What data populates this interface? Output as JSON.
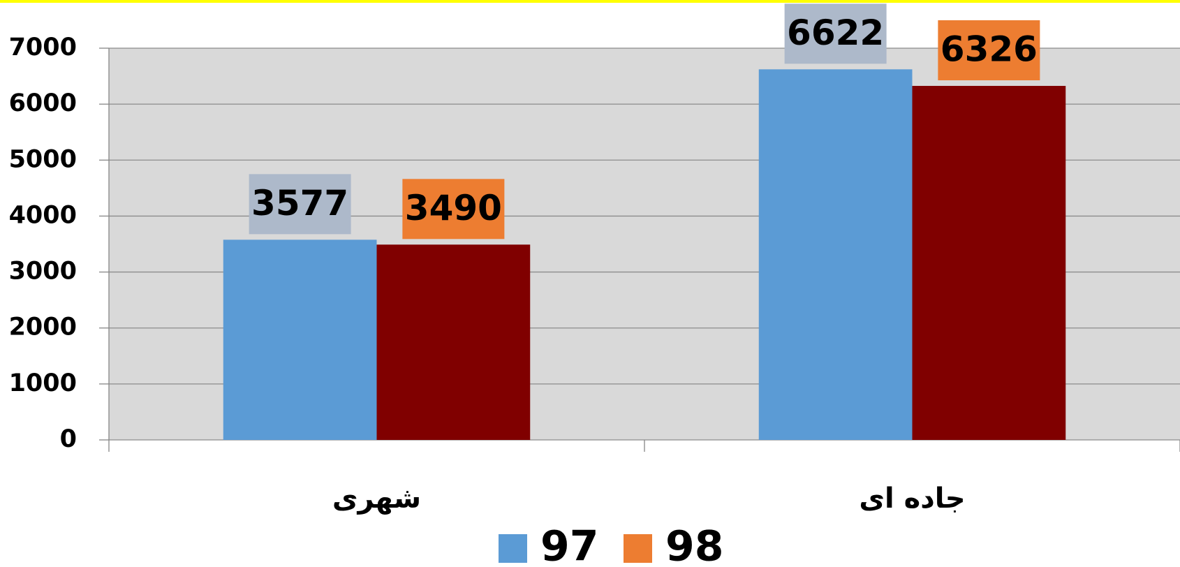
{
  "chart_data": {
    "type": "bar",
    "categories": [
      "شهری",
      "جاده ای"
    ],
    "series": [
      {
        "name": "97",
        "color": "#5b9bd5",
        "legend_color": "#5b9bd5",
        "label_background": "#adb9ca",
        "values": [
          3577,
          6622
        ]
      },
      {
        "name": "98",
        "color": "#800000",
        "legend_color": "#ed7d31",
        "label_background": "#ed7d31",
        "values": [
          3490,
          6326
        ]
      }
    ],
    "ylim": [
      0,
      7000
    ],
    "yticks": [
      0,
      1000,
      2000,
      3000,
      4000,
      5000,
      6000,
      7000
    ],
    "grid": true,
    "legend": "bottom"
  }
}
